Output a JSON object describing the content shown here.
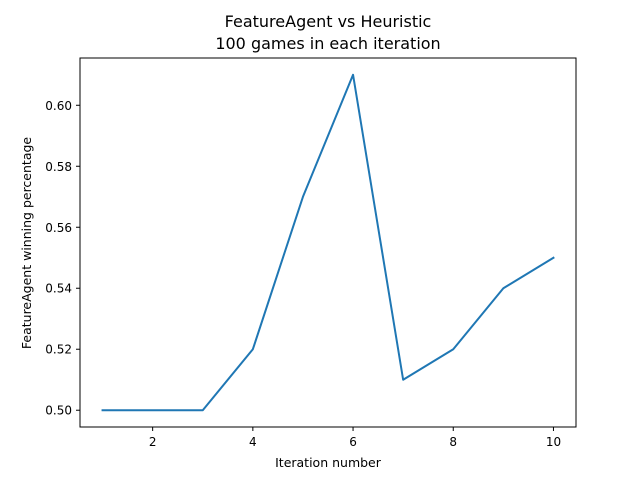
{
  "chart_data": {
    "type": "line",
    "title": "FeatureAgent vs Heuristic",
    "subtitle": "100 games in each iteration",
    "xlabel": "Iteration number",
    "ylabel": "FeatureAgent winning percentage",
    "xlim": [
      0.55,
      10.45
    ],
    "ylim": [
      0.4945,
      0.6155
    ],
    "xticks": [
      2,
      4,
      6,
      8,
      10
    ],
    "yticks": [
      0.5,
      0.52,
      0.54,
      0.56,
      0.58,
      0.6
    ],
    "xtick_labels": [
      "2",
      "4",
      "6",
      "8",
      "10"
    ],
    "ytick_labels": [
      "0.50",
      "0.52",
      "0.54",
      "0.56",
      "0.58",
      "0.60"
    ],
    "grid": false,
    "series": [
      {
        "color": "#1f77b4",
        "x": [
          1,
          2,
          3,
          4,
          5,
          6,
          7,
          8,
          9,
          10
        ],
        "values": [
          0.5,
          0.5,
          0.5,
          0.52,
          0.57,
          0.61,
          0.51,
          0.52,
          0.54,
          0.55
        ]
      }
    ]
  }
}
